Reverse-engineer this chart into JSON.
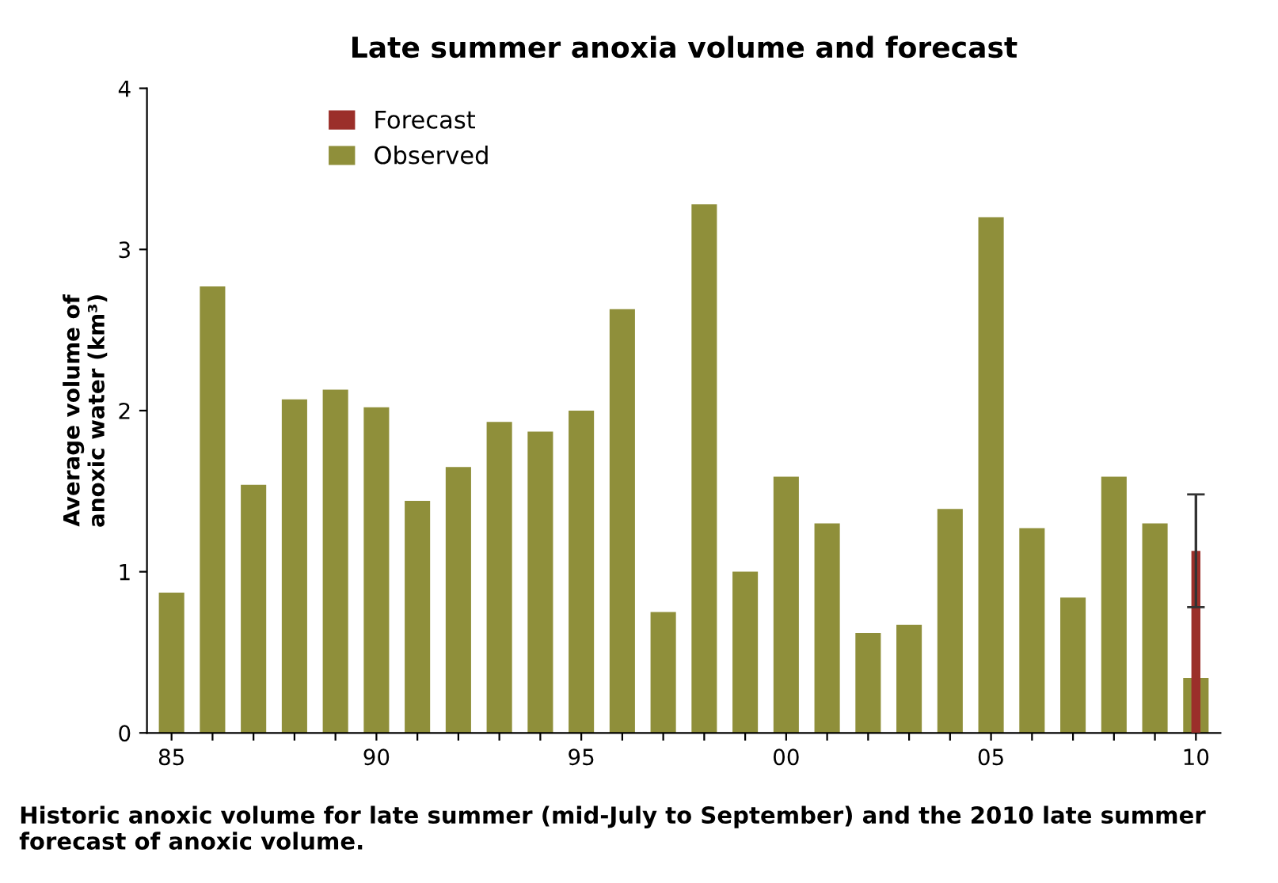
{
  "chart_data": {
    "type": "bar",
    "title": "Late summer anoxia volume and forecast",
    "ylabel": "Average volume of\nanoxic water (km³)",
    "categories": [
      "85",
      null,
      null,
      null,
      null,
      "90",
      null,
      null,
      null,
      null,
      "95",
      null,
      null,
      null,
      null,
      "00",
      null,
      null,
      null,
      null,
      "05",
      null,
      null,
      null,
      null,
      "10"
    ],
    "series": [
      {
        "name": "Observed",
        "color": "#8f8f3a",
        "values": [
          0.87,
          2.77,
          1.54,
          2.07,
          2.13,
          2.02,
          1.44,
          1.65,
          1.93,
          1.87,
          2.0,
          2.63,
          0.75,
          3.28,
          1.0,
          1.59,
          1.3,
          0.62,
          0.67,
          1.39,
          3.2,
          1.27,
          0.84,
          1.59,
          1.3,
          0.34
        ]
      },
      {
        "name": "Forecast",
        "color": "#9b2f2a",
        "values": [
          null,
          null,
          null,
          null,
          null,
          null,
          null,
          null,
          null,
          null,
          null,
          null,
          null,
          null,
          null,
          null,
          null,
          null,
          null,
          null,
          null,
          null,
          null,
          null,
          null,
          1.13
        ],
        "errors": [
          null,
          null,
          null,
          null,
          null,
          null,
          null,
          null,
          null,
          null,
          null,
          null,
          null,
          null,
          null,
          null,
          null,
          null,
          null,
          null,
          null,
          null,
          null,
          null,
          null,
          0.35
        ]
      }
    ],
    "ylim": [
      0,
      4
    ],
    "yticks": [
      0,
      1,
      2,
      3,
      4
    ],
    "grid": false,
    "legend": "top left",
    "annotations": [
      "Historic anoxic volume for late summer (mid-July to September) and the 2010 late summer forecast of anoxic volume."
    ]
  }
}
